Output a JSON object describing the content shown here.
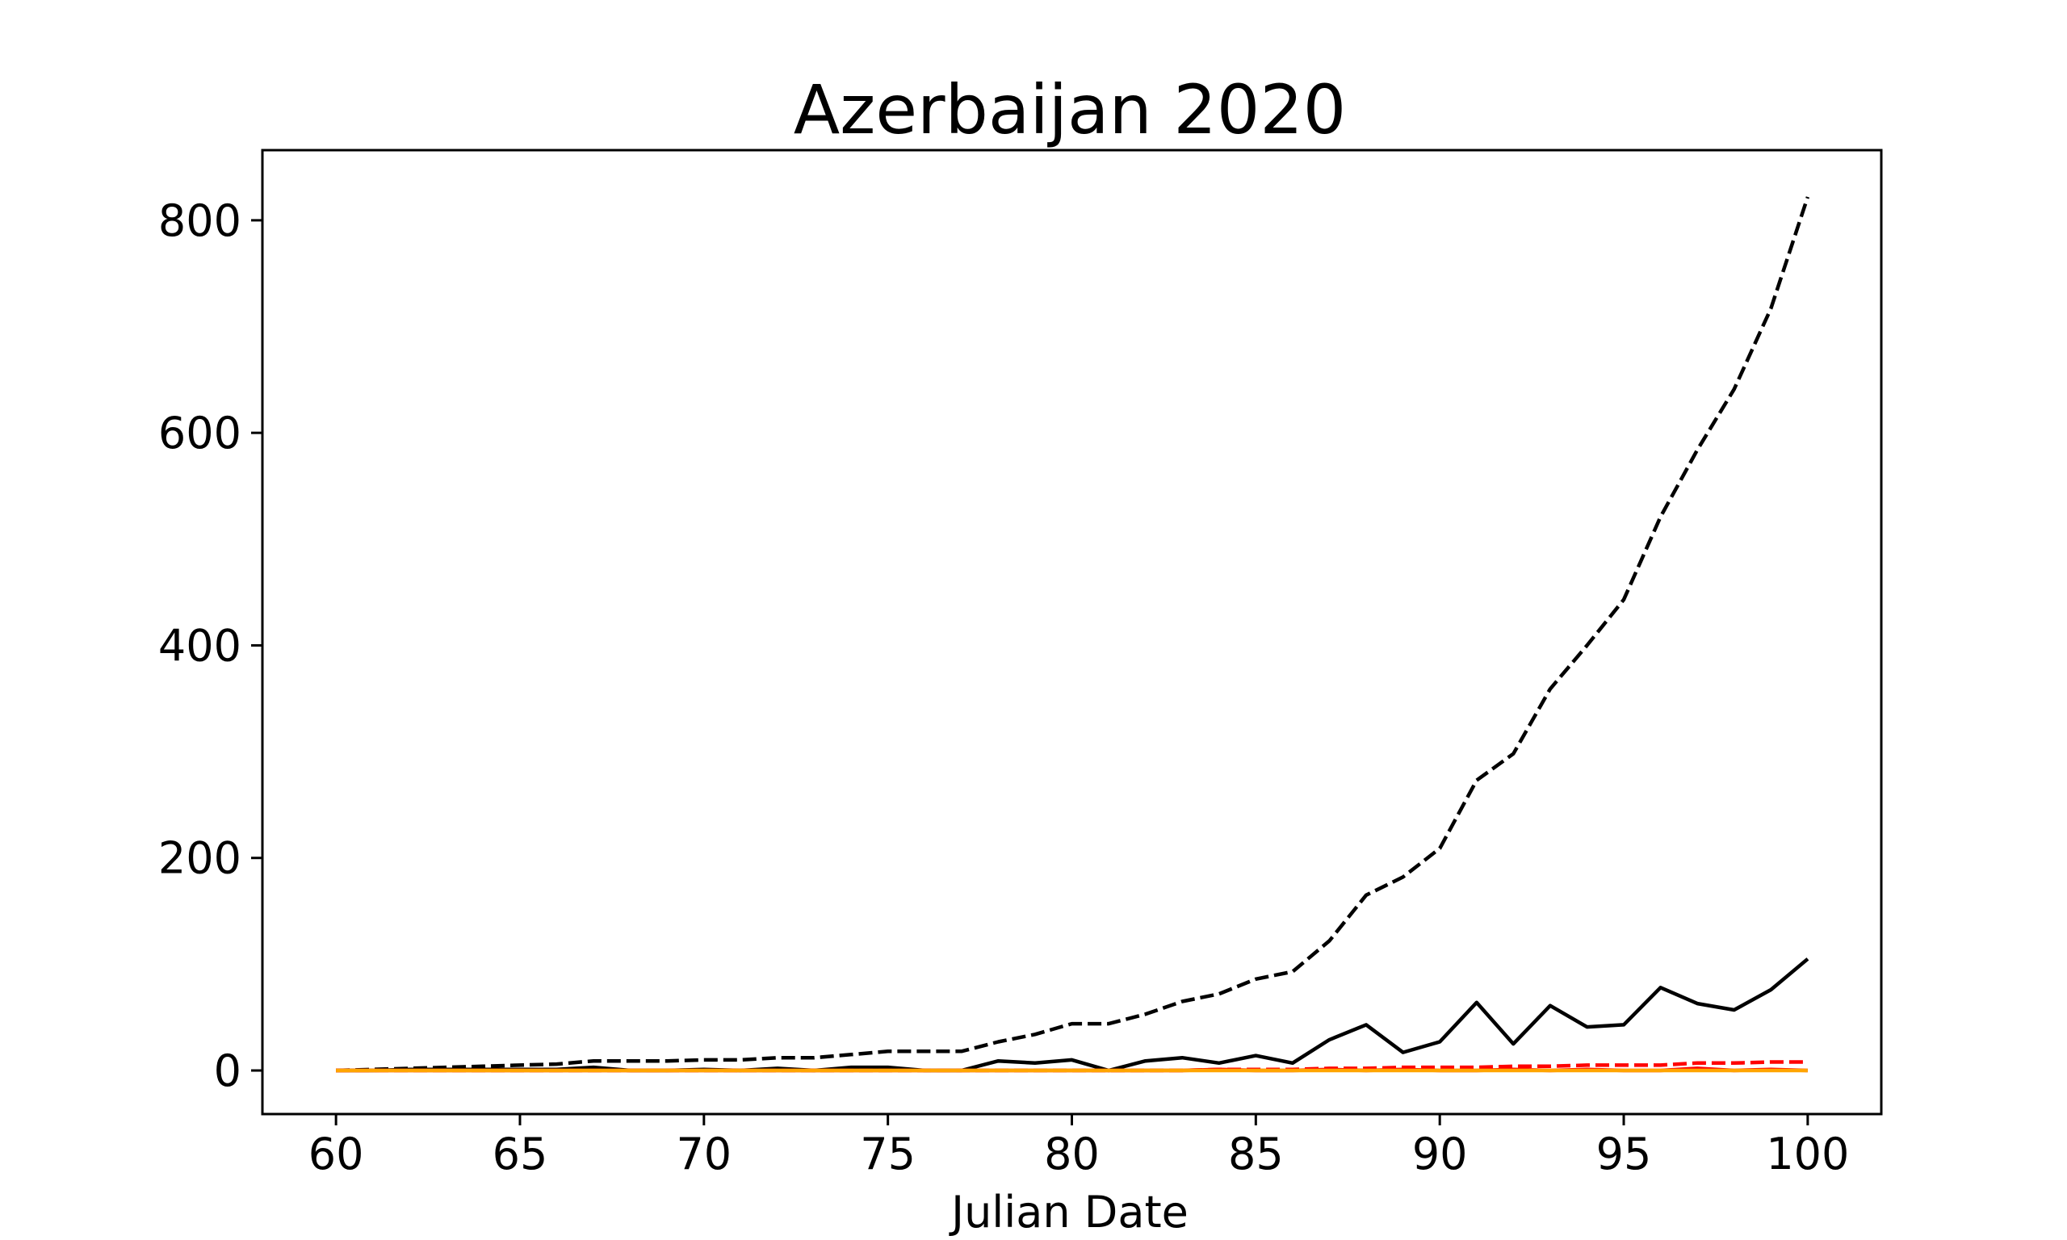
{
  "chart_data": {
    "type": "line",
    "title": "Azerbaijan 2020",
    "xlabel": "Julian Date",
    "ylabel": "",
    "xlim": [
      58,
      102
    ],
    "ylim": [
      -41,
      866
    ],
    "xticks": [
      60,
      65,
      70,
      75,
      80,
      85,
      90,
      95,
      100
    ],
    "yticks": [
      0,
      200,
      400,
      600,
      800
    ],
    "grid": false,
    "legend": "none",
    "x": [
      60,
      61,
      62,
      63,
      64,
      65,
      66,
      67,
      68,
      69,
      70,
      71,
      72,
      73,
      74,
      75,
      76,
      77,
      78,
      79,
      80,
      81,
      82,
      83,
      84,
      85,
      86,
      87,
      88,
      89,
      90,
      91,
      92,
      93,
      94,
      95,
      96,
      97,
      98,
      99,
      100
    ],
    "series": [
      {
        "color": "#000000",
        "style": "dashed",
        "values": [
          0,
          1,
          2,
          3,
          4,
          5,
          6,
          9,
          9,
          9,
          10,
          10,
          12,
          12,
          15,
          18,
          18,
          18,
          27,
          34,
          44,
          44,
          53,
          65,
          72,
          86,
          93,
          122,
          165,
          182,
          209,
          273,
          298,
          359,
          400,
          443,
          521,
          584,
          641,
          717,
          822
        ]
      },
      {
        "color": "#000000",
        "style": "solid",
        "values": [
          0,
          0,
          1,
          1,
          1,
          1,
          1,
          3,
          0,
          0,
          1,
          0,
          2,
          0,
          3,
          3,
          0,
          0,
          9,
          7,
          10,
          0,
          9,
          12,
          7,
          14,
          7,
          29,
          43,
          17,
          27,
          64,
          25,
          61,
          41,
          43,
          78,
          63,
          57,
          76,
          105
        ]
      },
      {
        "color": "#ff0000",
        "style": "dashed",
        "values": [
          0,
          0,
          0,
          0,
          0,
          0,
          0,
          0,
          0,
          0,
          0,
          0,
          0,
          0,
          0,
          0,
          0,
          0,
          0,
          0,
          0,
          0,
          0,
          0,
          1,
          1,
          1,
          2,
          2,
          3,
          3,
          3,
          4,
          4,
          5,
          5,
          5,
          7,
          7,
          8,
          8
        ]
      },
      {
        "color": "#ff0000",
        "style": "solid",
        "values": [
          0,
          0,
          0,
          0,
          0,
          0,
          0,
          0,
          0,
          0,
          0,
          0,
          0,
          0,
          0,
          0,
          0,
          0,
          0,
          0,
          0,
          0,
          0,
          0,
          1,
          0,
          0,
          1,
          0,
          1,
          0,
          0,
          1,
          0,
          1,
          0,
          0,
          2,
          0,
          1,
          0
        ]
      },
      {
        "color": "#ffa500",
        "style": "solid",
        "values": [
          0,
          0,
          0,
          0,
          0,
          0,
          0,
          0,
          0,
          0,
          0,
          0,
          0,
          0,
          0,
          0,
          0,
          0,
          0,
          0,
          0,
          0,
          0,
          0,
          0,
          0,
          0,
          0,
          0,
          0,
          0,
          0,
          0,
          0,
          0,
          0,
          0,
          0,
          0,
          0,
          0
        ]
      }
    ]
  }
}
